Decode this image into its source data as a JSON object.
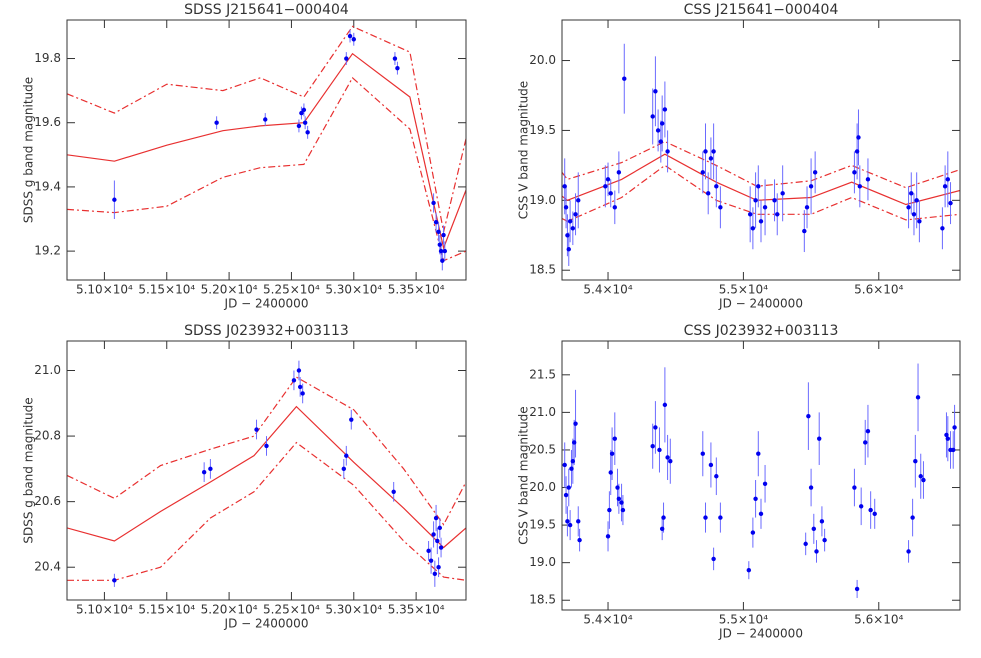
{
  "chart_data": [
    {
      "type": "scatter",
      "title": "SDSS J215641−000404",
      "xlabel": "JD − 2400000",
      "ylabel": "SDSS g band magnitude",
      "xlim": [
        50700,
        53900
      ],
      "ylim": [
        19.11,
        19.92
      ],
      "xticks": [
        {
          "value": 51000,
          "label": "5.10×10⁴"
        },
        {
          "value": 51500,
          "label": "5.15×10⁴"
        },
        {
          "value": 52000,
          "label": "5.20×10⁴"
        },
        {
          "value": 52500,
          "label": "5.25×10⁴"
        },
        {
          "value": 53000,
          "label": "5.30×10⁴"
        },
        {
          "value": 53500,
          "label": "5.35×10⁴"
        }
      ],
      "yticks": [
        19.2,
        19.4,
        19.6,
        19.8
      ],
      "points": {
        "color": "#0000ee",
        "error_color": "#6a6aff",
        "x": [
          51080,
          51900,
          52290,
          52560,
          52580,
          52600,
          52610,
          52630,
          52940,
          52970,
          53000,
          53330,
          53350,
          53640,
          53660,
          53680,
          53690,
          53700,
          53710,
          53720,
          53730
        ],
        "values": [
          19.36,
          19.6,
          19.61,
          19.59,
          19.63,
          19.64,
          19.6,
          19.57,
          19.8,
          19.87,
          19.86,
          19.8,
          19.77,
          19.35,
          19.29,
          19.26,
          19.22,
          19.2,
          19.17,
          19.25,
          19.2
        ],
        "errors": [
          0.06,
          0.02,
          0.02,
          0.02,
          0.02,
          0.02,
          0.02,
          0.02,
          0.02,
          0.02,
          0.02,
          0.02,
          0.02,
          0.03,
          0.03,
          0.03,
          0.03,
          0.03,
          0.03,
          0.03,
          0.03
        ]
      },
      "model": {
        "color": "#e83030",
        "x": [
          50700,
          51080,
          51500,
          51950,
          52250,
          52600,
          52990,
          53450,
          53720,
          53900
        ],
        "values": [
          19.5,
          19.48,
          19.53,
          19.575,
          19.59,
          19.6,
          19.815,
          19.68,
          19.21,
          19.39
        ],
        "upper": [
          19.69,
          19.63,
          19.72,
          19.7,
          19.74,
          19.68,
          19.9,
          19.82,
          19.26,
          19.55
        ],
        "lower": [
          19.33,
          19.32,
          19.34,
          19.43,
          19.46,
          19.47,
          19.74,
          19.58,
          19.17,
          19.2
        ]
      }
    },
    {
      "type": "scatter",
      "title": "CSS J215641−000404",
      "xlabel": "JD − 2400000",
      "ylabel": "CSS V band magnitude",
      "xlim": [
        53660,
        56600
      ],
      "ylim": [
        18.43,
        20.29
      ],
      "xticks": [
        {
          "value": 54000,
          "label": "5.4×10⁴"
        },
        {
          "value": 55000,
          "label": "5.5×10⁴"
        },
        {
          "value": 56000,
          "label": "5.6×10⁴"
        }
      ],
      "yticks": [
        18.5,
        {
          "value": 19,
          "label": "19.0"
        },
        19.5,
        {
          "value": 20,
          "label": "20.0"
        }
      ],
      "points": {
        "color": "#0000ee",
        "error_color": "#6a6aff",
        "x": [
          53680,
          53690,
          53700,
          53710,
          53720,
          53740,
          53760,
          53780,
          53980,
          54000,
          54020,
          54050,
          54080,
          54120,
          54330,
          54350,
          54370,
          54390,
          54400,
          54420,
          54440,
          54700,
          54720,
          54740,
          54760,
          54780,
          54800,
          54830,
          55050,
          55070,
          55090,
          55110,
          55130,
          55160,
          55230,
          55250,
          55290,
          55450,
          55470,
          55500,
          55530,
          55820,
          55840,
          55850,
          55860,
          55920,
          56220,
          56240,
          56260,
          56280,
          56300,
          56470,
          56490,
          56510,
          56530
        ],
        "values": [
          19.1,
          18.95,
          18.75,
          18.65,
          18.85,
          18.8,
          18.9,
          19.0,
          19.1,
          19.15,
          19.05,
          18.95,
          19.2,
          19.87,
          19.6,
          19.78,
          19.5,
          19.42,
          19.55,
          19.65,
          19.35,
          19.2,
          19.35,
          19.05,
          19.3,
          19.35,
          19.1,
          18.95,
          18.9,
          18.8,
          19.0,
          19.1,
          18.85,
          18.95,
          19.0,
          18.9,
          19.05,
          18.78,
          18.95,
          19.1,
          19.2,
          19.2,
          19.35,
          19.45,
          19.1,
          19.15,
          18.95,
          19.05,
          18.9,
          19.0,
          18.85,
          18.8,
          19.1,
          19.15,
          18.98
        ],
        "errors": [
          0.2,
          0.15,
          0.15,
          0.12,
          0.15,
          0.12,
          0.15,
          0.2,
          0.15,
          0.12,
          0.1,
          0.12,
          0.15,
          0.25,
          0.2,
          0.25,
          0.15,
          0.15,
          0.2,
          0.2,
          0.15,
          0.15,
          0.2,
          0.15,
          0.15,
          0.2,
          0.15,
          0.15,
          0.2,
          0.15,
          0.2,
          0.15,
          0.15,
          0.2,
          0.15,
          0.15,
          0.2,
          0.15,
          0.15,
          0.2,
          0.15,
          0.15,
          0.2,
          0.2,
          0.15,
          0.15,
          0.15,
          0.15,
          0.15,
          0.2,
          0.15,
          0.15,
          0.15,
          0.2,
          0.15
        ]
      },
      "model": {
        "color": "#e83030",
        "x": [
          53660,
          53700,
          54100,
          54420,
          54800,
          55100,
          55500,
          55800,
          56200,
          56600
        ],
        "values": [
          19.03,
          19.0,
          19.15,
          19.33,
          19.13,
          19.0,
          19.02,
          19.13,
          18.97,
          19.07
        ],
        "upper": [
          19.2,
          19.15,
          19.27,
          19.42,
          19.25,
          19.1,
          19.14,
          19.25,
          19.09,
          19.22
        ],
        "lower": [
          18.87,
          18.85,
          19.02,
          19.25,
          19.0,
          18.9,
          18.9,
          19.02,
          18.86,
          18.9
        ]
      }
    },
    {
      "type": "scatter",
      "title": "SDSS J023932+003113",
      "xlabel": "JD − 2400000",
      "ylabel": "SDSS g band magnitude",
      "xlim": [
        50700,
        53900
      ],
      "ylim": [
        20.3,
        21.09
      ],
      "xticks": [
        {
          "value": 51000,
          "label": "5.10×10⁴"
        },
        {
          "value": 51500,
          "label": "5.15×10⁴"
        },
        {
          "value": 52000,
          "label": "5.20×10⁴"
        },
        {
          "value": 52500,
          "label": "5.25×10⁴"
        },
        {
          "value": 53000,
          "label": "5.30×10⁴"
        },
        {
          "value": 53500,
          "label": "5.35×10⁴"
        }
      ],
      "yticks": [
        20.4,
        20.6,
        20.8,
        {
          "value": 21,
          "label": "21.0"
        }
      ],
      "points": {
        "color": "#0000ee",
        "error_color": "#6a6aff",
        "x": [
          51080,
          51800,
          51850,
          52220,
          52300,
          52520,
          52560,
          52570,
          52590,
          52920,
          52940,
          52980,
          53320,
          53600,
          53620,
          53640,
          53650,
          53660,
          53670,
          53680,
          53690,
          53700
        ],
        "values": [
          20.36,
          20.69,
          20.7,
          20.82,
          20.77,
          20.97,
          21.0,
          20.95,
          20.93,
          20.7,
          20.74,
          20.85,
          20.63,
          20.45,
          20.42,
          20.5,
          20.38,
          20.55,
          20.48,
          20.4,
          20.52,
          20.46
        ],
        "errors": [
          0.02,
          0.03,
          0.03,
          0.03,
          0.03,
          0.03,
          0.03,
          0.03,
          0.03,
          0.03,
          0.03,
          0.03,
          0.03,
          0.03,
          0.04,
          0.04,
          0.04,
          0.04,
          0.04,
          0.03,
          0.03,
          0.03
        ]
      },
      "model": {
        "color": "#e83030",
        "x": [
          50700,
          51080,
          51450,
          51850,
          52200,
          52540,
          53000,
          53400,
          53720,
          53900
        ],
        "values": [
          20.52,
          20.48,
          20.57,
          20.66,
          20.74,
          20.89,
          20.72,
          20.58,
          20.46,
          20.52
        ],
        "upper": [
          20.68,
          20.61,
          20.71,
          20.76,
          20.8,
          20.98,
          20.88,
          20.7,
          20.53,
          20.66
        ],
        "lower": [
          20.36,
          20.36,
          20.4,
          20.55,
          20.63,
          20.78,
          20.65,
          20.48,
          20.37,
          20.36
        ]
      }
    },
    {
      "type": "scatter",
      "title": "CSS J023932+003113",
      "xlabel": "JD − 2400000",
      "ylabel": "CSS V band magnitude",
      "xlim": [
        53660,
        56600
      ],
      "ylim": [
        18.37,
        21.95
      ],
      "xticks": [
        {
          "value": 54000,
          "label": "5.4×10⁴"
        },
        {
          "value": 55000,
          "label": "5.5×10⁴"
        },
        {
          "value": 56000,
          "label": "5.6×10⁴"
        }
      ],
      "yticks": [
        18.5,
        {
          "value": 19,
          "label": "19.0"
        },
        19.5,
        {
          "value": 20,
          "label": "20.0"
        },
        20.5,
        {
          "value": 21,
          "label": "21.0"
        },
        21.5
      ],
      "points": {
        "color": "#0000ee",
        "error_color": "#6a6aff",
        "x": [
          53680,
          53690,
          53700,
          53710,
          53720,
          53730,
          53740,
          53750,
          53760,
          53780,
          53790,
          54000,
          54010,
          54020,
          54030,
          54050,
          54070,
          54080,
          54100,
          54110,
          54330,
          54350,
          54380,
          54400,
          54410,
          54420,
          54440,
          54460,
          54700,
          54720,
          54760,
          54780,
          54800,
          54830,
          55040,
          55070,
          55090,
          55110,
          55130,
          55160,
          55460,
          55480,
          55500,
          55520,
          55540,
          55560,
          55580,
          55600,
          55820,
          55840,
          55870,
          55900,
          55920,
          55940,
          55970,
          56220,
          56250,
          56270,
          56290,
          56310,
          56330,
          56500,
          56510,
          56530,
          56550,
          56560
        ],
        "values": [
          20.3,
          19.9,
          19.55,
          20.0,
          19.5,
          20.25,
          20.35,
          20.6,
          20.85,
          19.55,
          19.3,
          19.35,
          19.7,
          20.2,
          20.45,
          20.65,
          20.0,
          19.85,
          19.8,
          19.7,
          20.55,
          20.8,
          20.5,
          19.45,
          19.6,
          21.1,
          20.4,
          20.35,
          20.45,
          19.6,
          20.3,
          19.05,
          20.15,
          19.6,
          18.9,
          19.4,
          19.85,
          20.45,
          19.65,
          20.05,
          19.25,
          20.95,
          20.0,
          19.45,
          19.15,
          20.65,
          19.55,
          19.3,
          20.0,
          18.65,
          19.75,
          20.6,
          20.75,
          19.7,
          19.65,
          19.15,
          19.6,
          20.35,
          21.2,
          20.15,
          20.1,
          20.7,
          20.65,
          20.5,
          20.5,
          20.8
        ],
        "errors": [
          0.3,
          0.25,
          0.2,
          0.25,
          0.2,
          0.25,
          0.3,
          0.3,
          0.45,
          0.2,
          0.15,
          0.2,
          0.25,
          0.3,
          0.35,
          0.35,
          0.25,
          0.2,
          0.25,
          0.2,
          0.3,
          0.35,
          0.3,
          0.15,
          0.2,
          0.5,
          0.3,
          0.3,
          0.3,
          0.2,
          0.3,
          0.15,
          0.25,
          0.2,
          0.12,
          0.2,
          0.25,
          0.3,
          0.2,
          0.25,
          0.15,
          0.45,
          0.25,
          0.2,
          0.15,
          0.35,
          0.2,
          0.15,
          0.25,
          0.12,
          0.25,
          0.3,
          0.35,
          0.25,
          0.2,
          0.15,
          0.25,
          0.35,
          0.45,
          0.3,
          0.25,
          0.3,
          0.3,
          0.25,
          0.25,
          0.3
        ]
      }
    }
  ]
}
